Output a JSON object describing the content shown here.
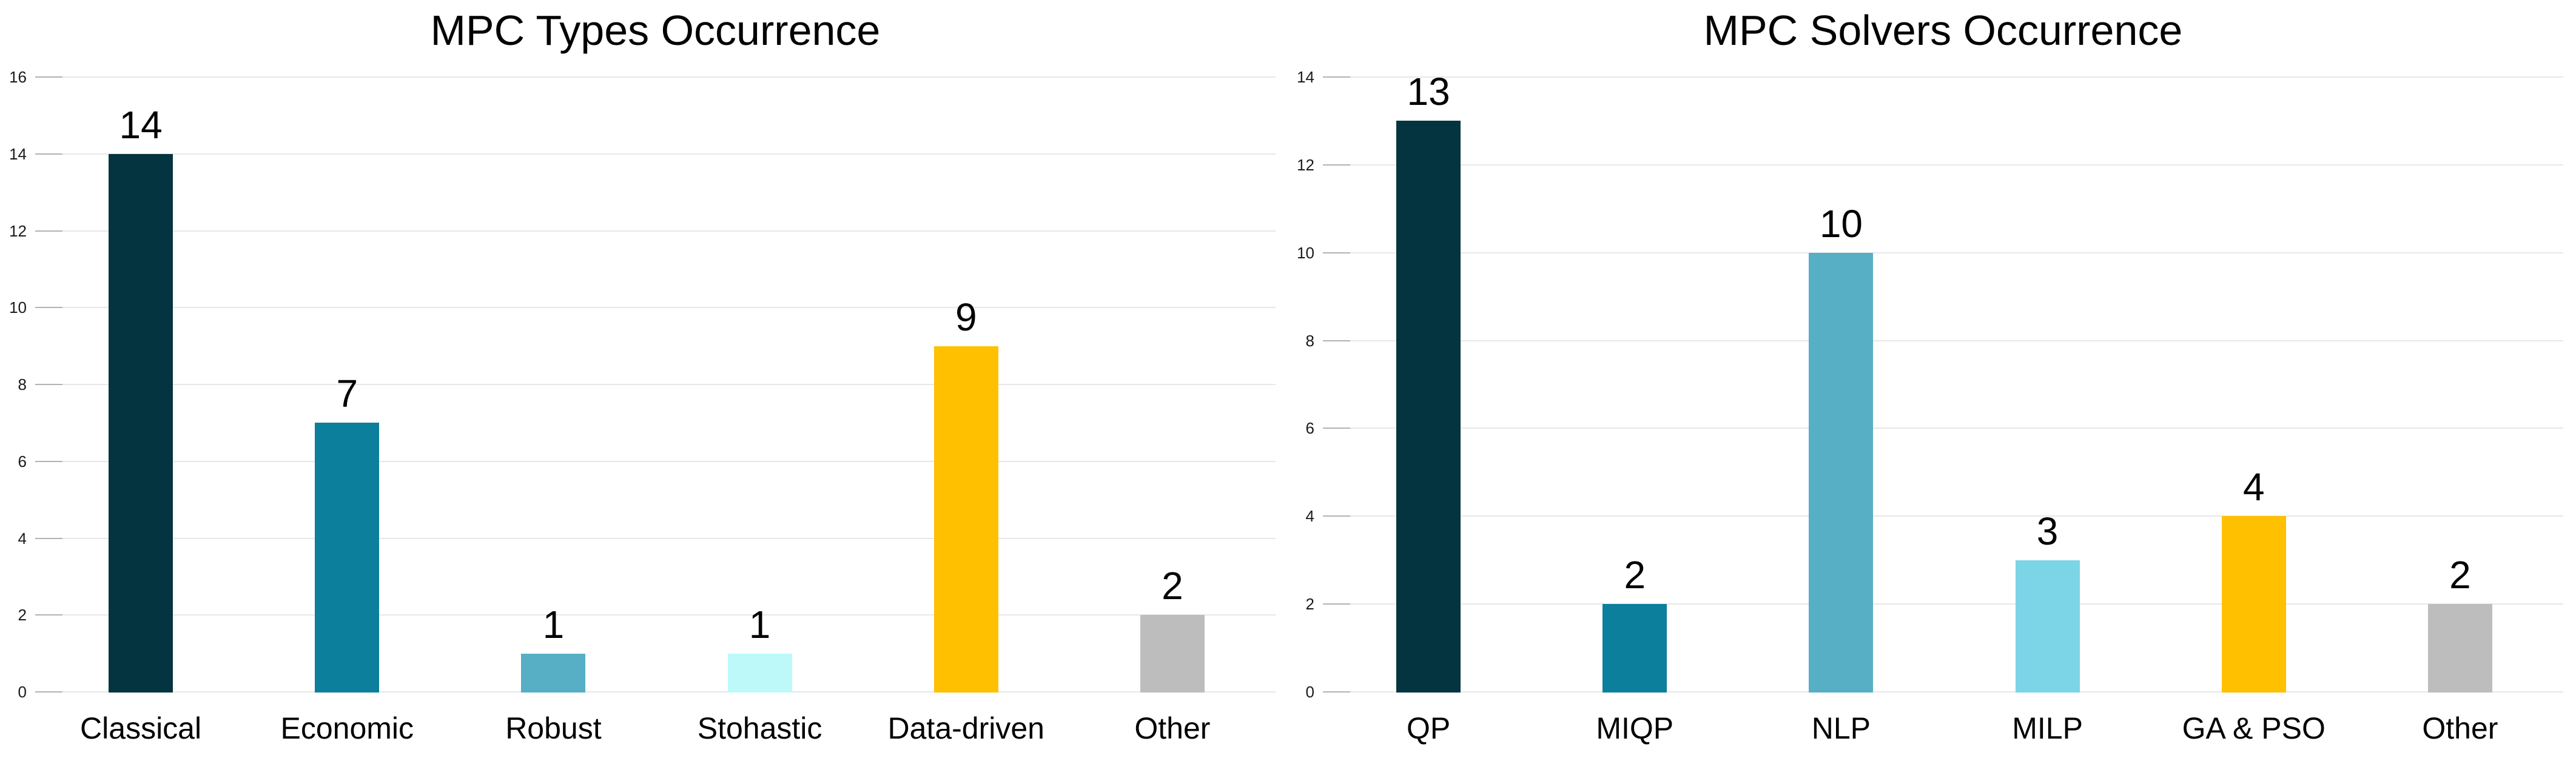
{
  "page": {
    "background_color": "#ffffff",
    "text_color": "#000000",
    "gridline_color": "#e7e7e7",
    "tick_color": "#b2b2b2"
  },
  "chart_data": [
    {
      "type": "bar",
      "title": "MPC Types Occurrence",
      "categories": [
        "Classical",
        "Economic",
        "Robust",
        "Stohastic",
        "Data-driven",
        "Other"
      ],
      "values": [
        14,
        7,
        1,
        1,
        9,
        2
      ],
      "value_labels": [
        "14",
        "7",
        "1",
        "1",
        "9",
        "2"
      ],
      "bar_colors": [
        "#04343f",
        "#0b7f9b",
        "#56afc4",
        "#bdf9f9",
        "#ffc000",
        "#bdbdbd"
      ],
      "xlabel": "",
      "ylabel": "",
      "ylim": [
        0,
        16
      ],
      "ytick_step": 2,
      "ytick_labels": [
        "0",
        "2",
        "4",
        "6",
        "8",
        "10",
        "12",
        "14",
        "16"
      ],
      "grid": true,
      "legend_position": "none"
    },
    {
      "type": "bar",
      "title": "MPC Solvers Occurrence",
      "categories": [
        "QP",
        "MIQP",
        "NLP",
        "MILP",
        "GA & PSO",
        "Other"
      ],
      "values": [
        13,
        2,
        10,
        3,
        4,
        2
      ],
      "value_labels": [
        "13",
        "2",
        "10",
        "3",
        "4",
        "2"
      ],
      "bar_colors": [
        "#04343f",
        "#0b7f9b",
        "#56afc4",
        "#7cd5e6",
        "#ffc000",
        "#bdbdbd"
      ],
      "xlabel": "",
      "ylabel": "",
      "ylim": [
        0,
        14
      ],
      "ytick_step": 2,
      "ytick_labels": [
        "0",
        "2",
        "4",
        "6",
        "8",
        "10",
        "12",
        "14"
      ],
      "grid": true,
      "legend_position": "none"
    }
  ]
}
